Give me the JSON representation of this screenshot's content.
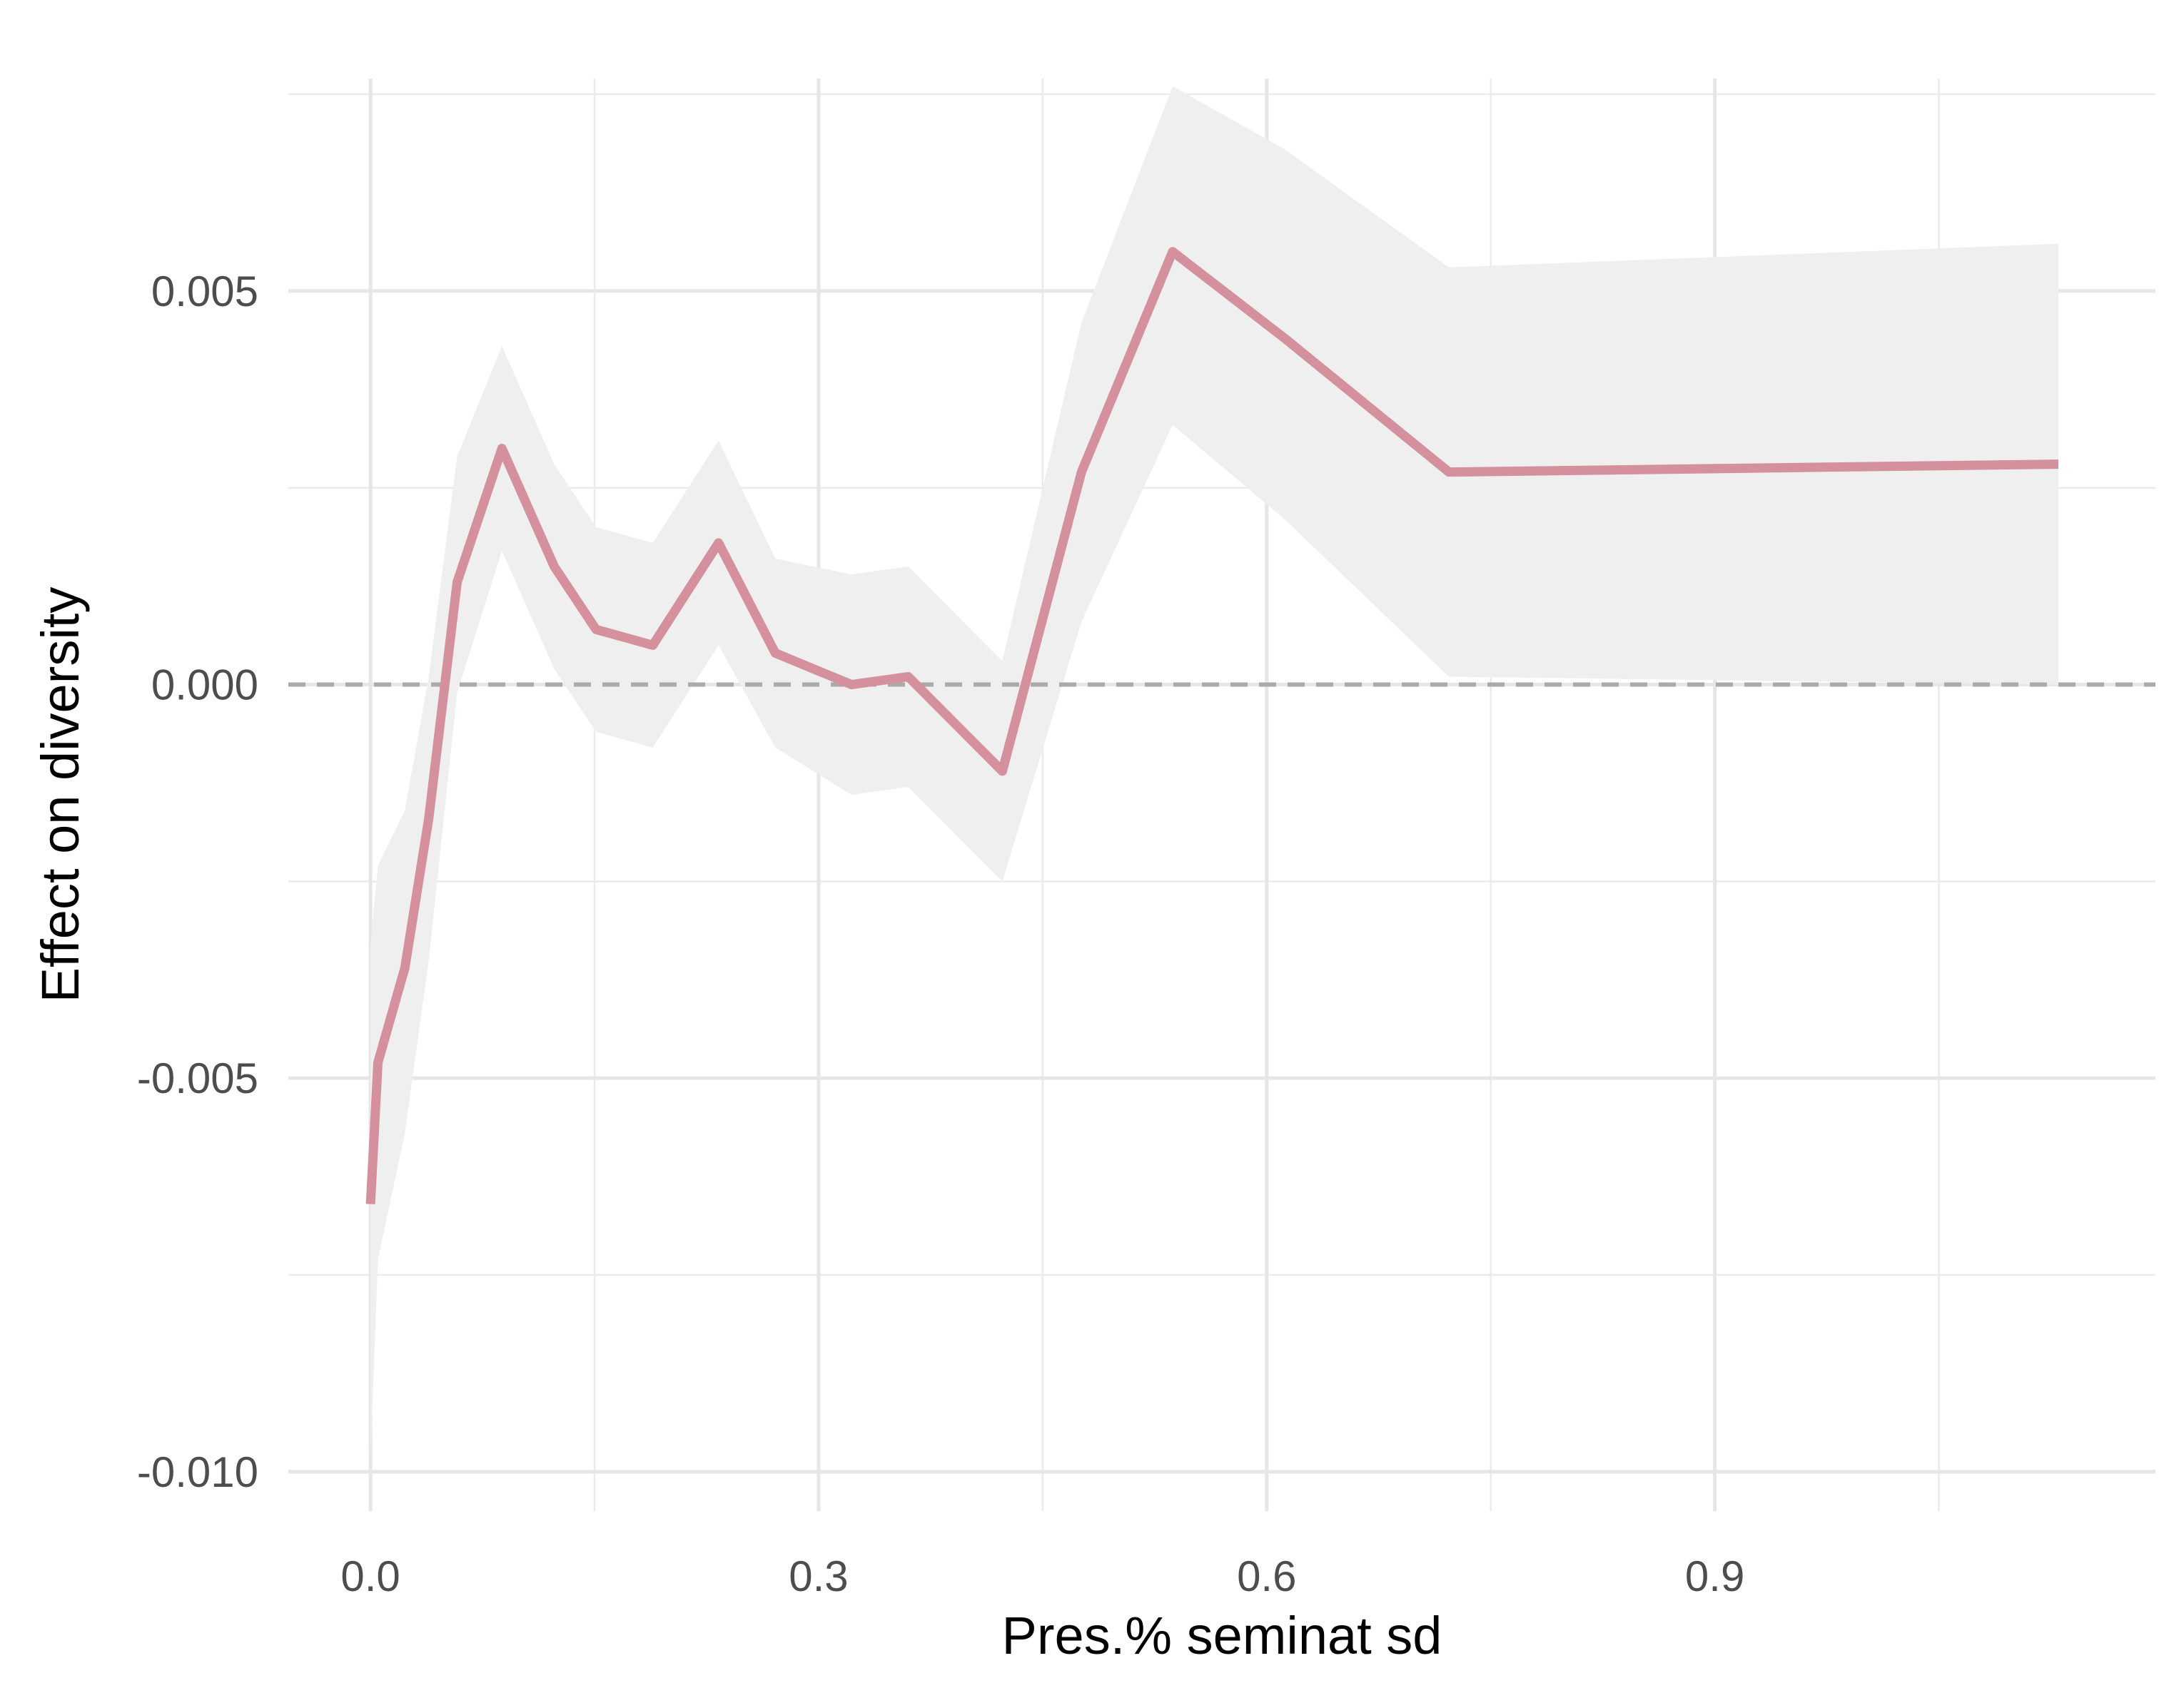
{
  "chart_data": {
    "type": "line",
    "title": "",
    "xlabel": "Pres.% seminat sd",
    "ylabel": "Effect on diversity",
    "xlim": [
      -0.055,
      1.195
    ],
    "ylim": [
      -0.0105,
      0.0077
    ],
    "x_ticks": [
      0.0,
      0.3,
      0.6,
      0.9
    ],
    "x_tick_labels": [
      "0.0",
      "0.3",
      "0.6",
      "0.9"
    ],
    "y_ticks": [
      -0.01,
      -0.005,
      0.0,
      0.005
    ],
    "y_tick_labels": [
      "-0.010",
      "-0.005",
      "0.000",
      "0.005"
    ],
    "grid": true,
    "reference_line": {
      "y": 0.0,
      "style": "dashed",
      "color": "#aaaaaa"
    },
    "series": [
      {
        "x": [
          0.0,
          0.005,
          0.023,
          0.039,
          0.058,
          0.088,
          0.123,
          0.151,
          0.189,
          0.233,
          0.271,
          0.322,
          0.36,
          0.423,
          0.476,
          0.537,
          0.612,
          0.722,
          1.13
        ],
        "values": [
          -0.0066,
          -0.0048,
          -0.0036,
          -0.0017,
          0.0013,
          0.003,
          0.0015,
          0.0007,
          0.0005,
          0.0018,
          0.0004,
          0.0,
          0.0001,
          -0.0011,
          0.0027,
          0.0055,
          0.0044,
          0.0027,
          0.0028
        ],
        "lower": [
          -0.0098,
          -0.0073,
          -0.0057,
          -0.0035,
          -0.0001,
          0.0017,
          0.0002,
          -0.0006,
          -0.0008,
          0.0005,
          -0.0008,
          -0.0014,
          -0.0013,
          -0.0025,
          0.0008,
          0.0033,
          0.0021,
          0.0001,
          0.0
        ],
        "upper": [
          -0.0033,
          -0.0023,
          -0.0016,
          0.0001,
          0.0029,
          0.0043,
          0.0028,
          0.002,
          0.0018,
          0.0031,
          0.0016,
          0.0014,
          0.0015,
          0.0003,
          0.0046,
          0.0076,
          0.0068,
          0.0053,
          0.0056
        ],
        "color": "#d4909d",
        "band_color": "#efefef"
      }
    ]
  }
}
